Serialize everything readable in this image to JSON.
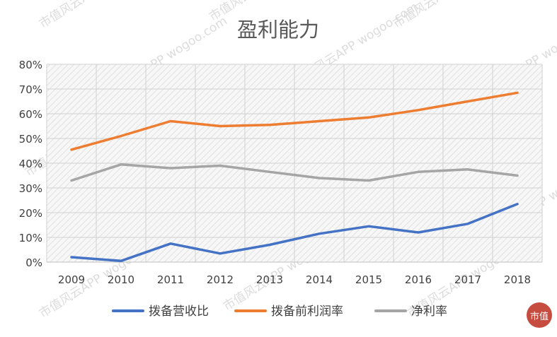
{
  "chart_data": {
    "type": "line",
    "title": "盈利能力",
    "categories": [
      "2009",
      "2010",
      "2011",
      "2012",
      "2013",
      "2014",
      "2015",
      "2016",
      "2017",
      "2018"
    ],
    "yticks": [
      "0%",
      "10%",
      "20%",
      "30%",
      "40%",
      "50%",
      "60%",
      "70%",
      "80%"
    ],
    "ylim": [
      0,
      80
    ],
    "grid": true,
    "legend_position": "bottom",
    "series": [
      {
        "name": "拨备营收比",
        "color": "#4472C4",
        "values": [
          2.0,
          0.5,
          7.5,
          3.5,
          7.0,
          11.5,
          14.5,
          12.0,
          15.5,
          23.5
        ]
      },
      {
        "name": "拨备前利润率",
        "color": "#ED7D31",
        "values": [
          45.5,
          51.0,
          57.0,
          55.0,
          55.5,
          57.0,
          58.5,
          61.5,
          65.0,
          68.5
        ]
      },
      {
        "name": "净利率",
        "color": "#A5A5A5",
        "values": [
          33.0,
          39.5,
          38.0,
          39.0,
          36.5,
          34.0,
          33.0,
          36.5,
          37.5,
          35.0
        ]
      }
    ]
  },
  "watermark": {
    "text": "市值风云APP  wogoo.com",
    "color": "#bfbfbf"
  },
  "logo": {
    "text": "市值",
    "color": "#c0392b"
  }
}
